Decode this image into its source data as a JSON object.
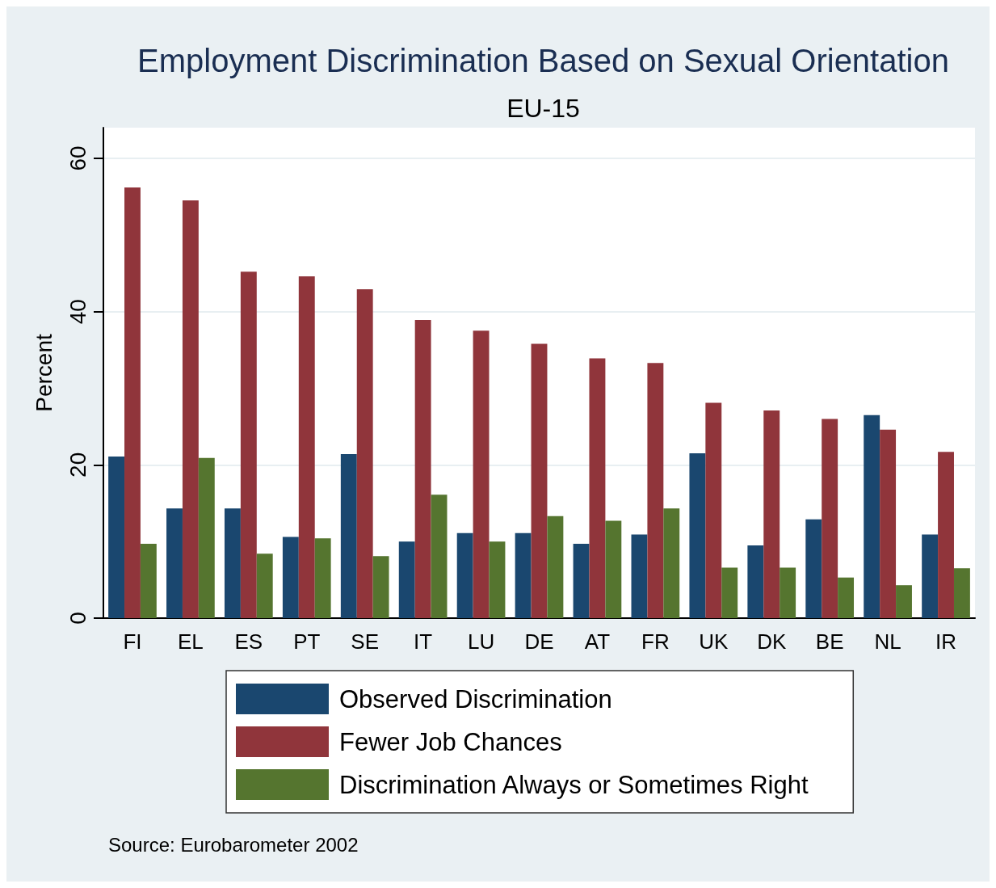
{
  "chart_data": {
    "type": "bar",
    "title": "Employment Discrimination Based on Sexual Orientation",
    "subtitle": "EU-15",
    "ylabel": "Percent",
    "categories": [
      "FI",
      "EL",
      "ES",
      "PT",
      "SE",
      "IT",
      "LU",
      "DE",
      "AT",
      "FR",
      "UK",
      "DK",
      "BE",
      "NL",
      "IR"
    ],
    "series": [
      {
        "name": "Observed Discrimination",
        "color": "#1a476f",
        "values": [
          21.1,
          14.3,
          14.3,
          10.6,
          21.4,
          10.0,
          11.1,
          11.1,
          9.7,
          10.9,
          21.5,
          9.5,
          12.9,
          26.5,
          10.9
        ]
      },
      {
        "name": "Fewer Job Chances",
        "color": "#90353b",
        "values": [
          56.2,
          54.5,
          45.2,
          44.6,
          42.9,
          38.9,
          37.5,
          35.8,
          33.9,
          33.3,
          28.1,
          27.1,
          26.0,
          24.6,
          21.7
        ]
      },
      {
        "name": "Discrimination Always or Sometimes Right",
        "color": "#55752f",
        "values": [
          9.7,
          20.9,
          8.4,
          10.4,
          8.1,
          16.1,
          10.0,
          13.3,
          12.7,
          14.3,
          6.6,
          6.6,
          5.3,
          4.3,
          6.5
        ]
      }
    ],
    "ylim": [
      0,
      64
    ],
    "yticks": [
      0,
      20,
      40,
      60
    ],
    "grid": "y",
    "legend": "bottom",
    "annotations": [
      "Source: Eurobarometer 2002"
    ]
  }
}
